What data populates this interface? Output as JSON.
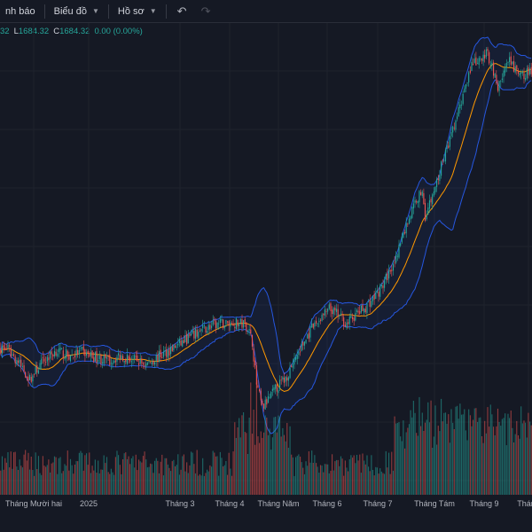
{
  "toolbar": {
    "alert_label": "nh báo",
    "chart_label": "Biểu đồ",
    "profile_label": "Hồ sơ"
  },
  "legend": {
    "high_tail": "32",
    "low_label": "L",
    "low_value": "1684.32",
    "close_label": "C",
    "close_value": "1684.32",
    "change": "0.00 (0.00%)"
  },
  "colors": {
    "background": "#151924",
    "up": "#26a69a",
    "down": "#ef5350",
    "band": "#2962ff",
    "basis": "#ff9800"
  },
  "chart_data": {
    "type": "candlestick",
    "indicators": [
      "bollinger-bands",
      "volume"
    ],
    "x_tick_labels": [
      "Tháng Mười hai",
      "2025",
      "Tháng 3",
      "Tháng 4",
      "Tháng Năm",
      "Tháng 6",
      "Tháng 7",
      "Tháng Tám",
      "Tháng 9",
      "Tháng"
    ],
    "price_range": [
      1050,
      1800
    ],
    "legend_close": 1684.32,
    "close_anchors": [
      [
        0,
        1230
      ],
      [
        5,
        1228
      ],
      [
        12,
        1207
      ],
      [
        20,
        1178
      ],
      [
        28,
        1205
      ],
      [
        38,
        1226
      ],
      [
        48,
        1216
      ],
      [
        55,
        1224
      ],
      [
        65,
        1215
      ],
      [
        75,
        1208
      ],
      [
        82,
        1218
      ],
      [
        90,
        1212
      ],
      [
        100,
        1203
      ],
      [
        110,
        1218
      ],
      [
        120,
        1232
      ],
      [
        130,
        1248
      ],
      [
        140,
        1262
      ],
      [
        150,
        1270
      ],
      [
        160,
        1272
      ],
      [
        167,
        1270
      ],
      [
        170,
        1265
      ],
      [
        173,
        1240
      ],
      [
        176,
        1170
      ],
      [
        180,
        1130
      ],
      [
        185,
        1148
      ],
      [
        190,
        1165
      ],
      [
        196,
        1180
      ],
      [
        202,
        1210
      ],
      [
        208,
        1236
      ],
      [
        214,
        1262
      ],
      [
        220,
        1280
      ],
      [
        226,
        1294
      ],
      [
        232,
        1285
      ],
      [
        238,
        1270
      ],
      [
        244,
        1285
      ],
      [
        250,
        1296
      ],
      [
        256,
        1312
      ],
      [
        262,
        1330
      ],
      [
        268,
        1360
      ],
      [
        274,
        1398
      ],
      [
        280,
        1440
      ],
      [
        286,
        1478
      ],
      [
        290,
        1490
      ],
      [
        292,
        1450
      ],
      [
        296,
        1475
      ],
      [
        300,
        1505
      ],
      [
        304,
        1540
      ],
      [
        310,
        1582
      ],
      [
        316,
        1630
      ],
      [
        320,
        1672
      ],
      [
        324,
        1700
      ],
      [
        330,
        1705
      ],
      [
        334,
        1720
      ],
      [
        338,
        1700
      ],
      [
        342,
        1660
      ],
      [
        346,
        1690
      ],
      [
        350,
        1705
      ],
      [
        354,
        1690
      ],
      [
        358,
        1680
      ],
      [
        362,
        1688
      ],
      [
        365,
        1684.32
      ]
    ]
  }
}
